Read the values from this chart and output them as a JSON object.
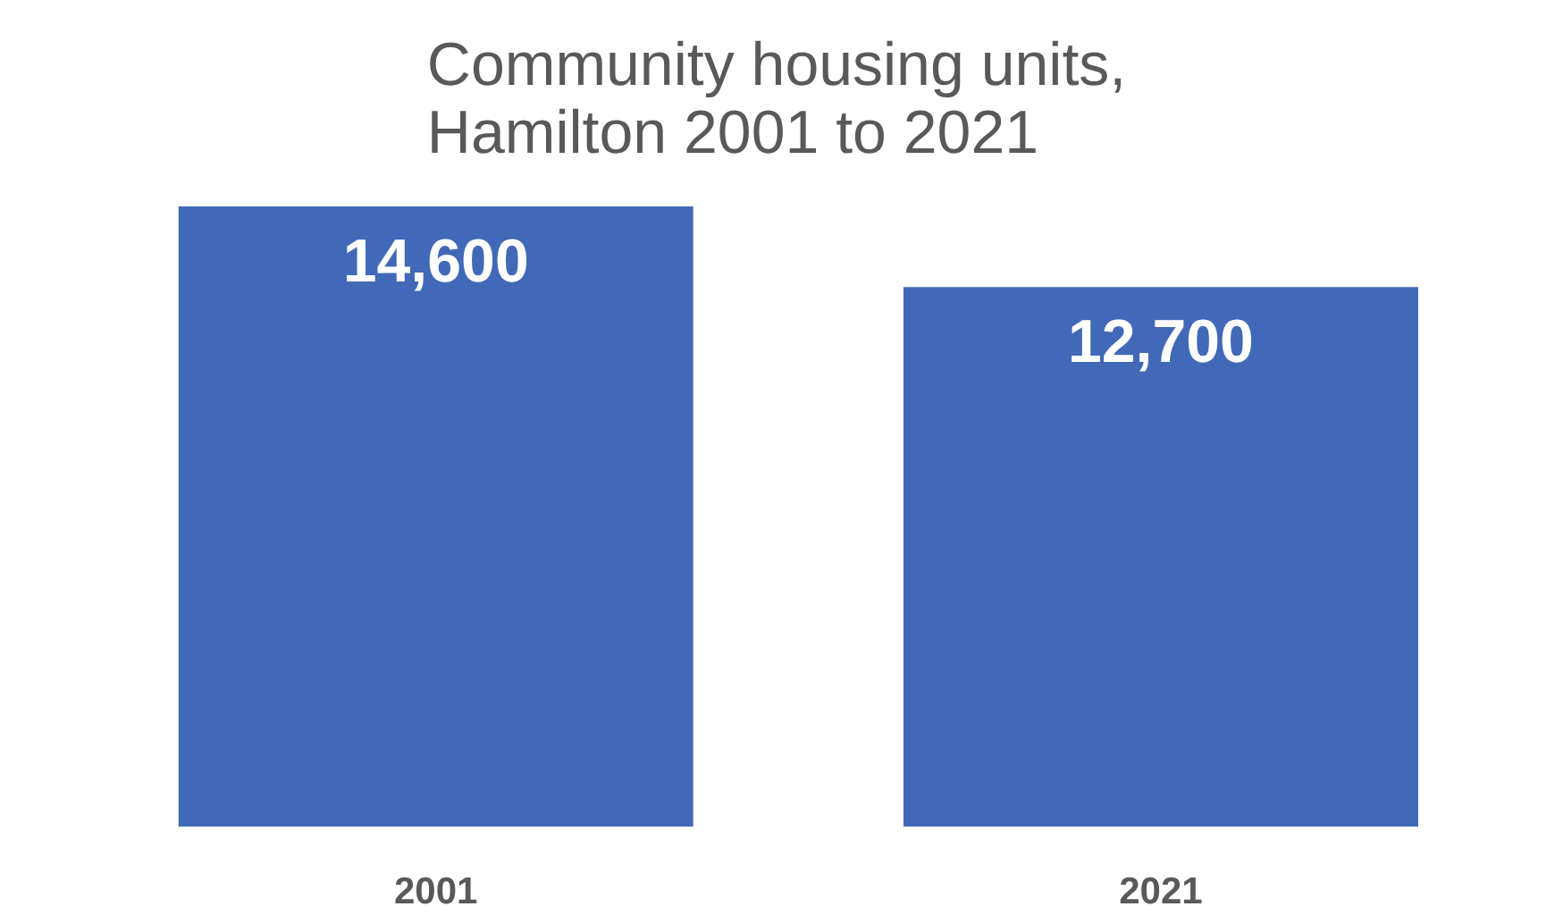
{
  "chart_data": {
    "type": "bar",
    "title": "Community housing units,\nHamilton 2001 to 2021",
    "categories": [
      "2001",
      "2021"
    ],
    "values": [
      14600,
      12700
    ],
    "value_labels": [
      "14,600",
      "12,700"
    ],
    "color": "#4169b8",
    "grid": false
  }
}
